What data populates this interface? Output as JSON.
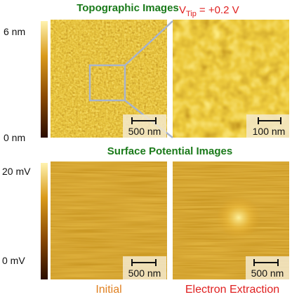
{
  "header": {
    "title": "Topographic Images",
    "bias": {
      "symbol": "V",
      "subscript": "Tip",
      "value": "= +0.2 V"
    }
  },
  "topography": {
    "colorbar": {
      "max": "6 nm",
      "min": "0 nm"
    },
    "panels": [
      {
        "scale_bar": "500 nm"
      },
      {
        "scale_bar": "100 nm"
      }
    ]
  },
  "potential": {
    "title": "Surface Potential Images",
    "colorbar": {
      "max": "20 mV",
      "min": "0 mV"
    },
    "panels": [
      {
        "scale_bar": "500 nm",
        "label": "Initial"
      },
      {
        "scale_bar": "500 nm",
        "label": "Electron Extraction"
      }
    ]
  }
}
